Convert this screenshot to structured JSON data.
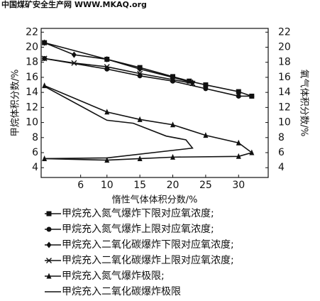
{
  "watermark": "中国煤矿安全生产网 WWW.MKAQ.org",
  "chart_data": {
    "type": "line",
    "xlabel": "惰性气体体积分数/%",
    "ylabel": "甲烷体积分数/%",
    "y2label": "氧气体积分数/%",
    "xlim": [
      0,
      34.5
    ],
    "xticks": [
      6,
      10,
      15,
      20,
      25,
      30
    ],
    "ylim": [
      2.7,
      22.5
    ],
    "yticks": [
      4,
      6,
      8,
      10,
      12,
      14,
      16,
      18,
      20,
      22
    ],
    "y2lim": [
      2.7,
      22.5
    ],
    "y2ticks": [
      4,
      6,
      8,
      10,
      12,
      14,
      16,
      18,
      20,
      22
    ],
    "series": [
      {
        "name": "甲烷充入氮气爆炸下限对应氧浓度;",
        "color": "#111",
        "marker": "square",
        "axis": "y2",
        "x": [
          0.5,
          10,
          15,
          20,
          22.5,
          25,
          30,
          32
        ],
        "values": [
          20.6,
          18.4,
          17.3,
          16.1,
          15.5,
          15.0,
          14.1,
          13.5
        ]
      },
      {
        "name": "甲烷充入氮气爆炸上限对应氧浓度;",
        "color": "#111",
        "marker": "circle",
        "axis": "y2",
        "x": [
          0.5,
          10,
          15,
          20,
          25,
          30,
          32
        ],
        "values": [
          18.5,
          17.1,
          16.2,
          15.5,
          14.5,
          13.5,
          13.5
        ]
      },
      {
        "name": "甲烷充入二氧化碳爆炸下限对应氧浓度;",
        "color": "#111",
        "marker": "diamond",
        "axis": "y2",
        "x": [
          0.5,
          5,
          10,
          15,
          20,
          23
        ],
        "values": [
          20.6,
          19.0,
          18.4,
          17.1,
          16.0,
          15.3
        ]
      },
      {
        "name": "甲烷充入二氧化碳爆炸上限对应氧浓度;",
        "color": "#111",
        "marker": "x",
        "axis": "y2",
        "x": [
          0.5,
          5,
          10,
          15,
          20,
          23
        ],
        "values": [
          18.5,
          17.9,
          17.4,
          16.5,
          15.7,
          15.2
        ]
      },
      {
        "name": "甲烷充入氮气爆炸极限;",
        "color": "#111",
        "marker": "triangle",
        "x": [
          0.5,
          10,
          15,
          20,
          25,
          30,
          32,
          30,
          20,
          15,
          10,
          0.5
        ],
        "values": [
          14.9,
          11.4,
          10.4,
          9.7,
          8.3,
          7.3,
          6.0,
          5.5,
          5.4,
          5.2,
          5.0,
          5.2
        ]
      },
      {
        "name": "甲烷充入二氧化碳爆炸极限",
        "color": "#111",
        "marker": "none",
        "x": [
          0.5,
          10,
          14,
          19,
          22,
          23,
          21,
          10,
          0.5
        ],
        "values": [
          14.8,
          10.3,
          9.9,
          8.2,
          7.7,
          6.6,
          6.4,
          5.3,
          5.2
        ]
      }
    ]
  }
}
